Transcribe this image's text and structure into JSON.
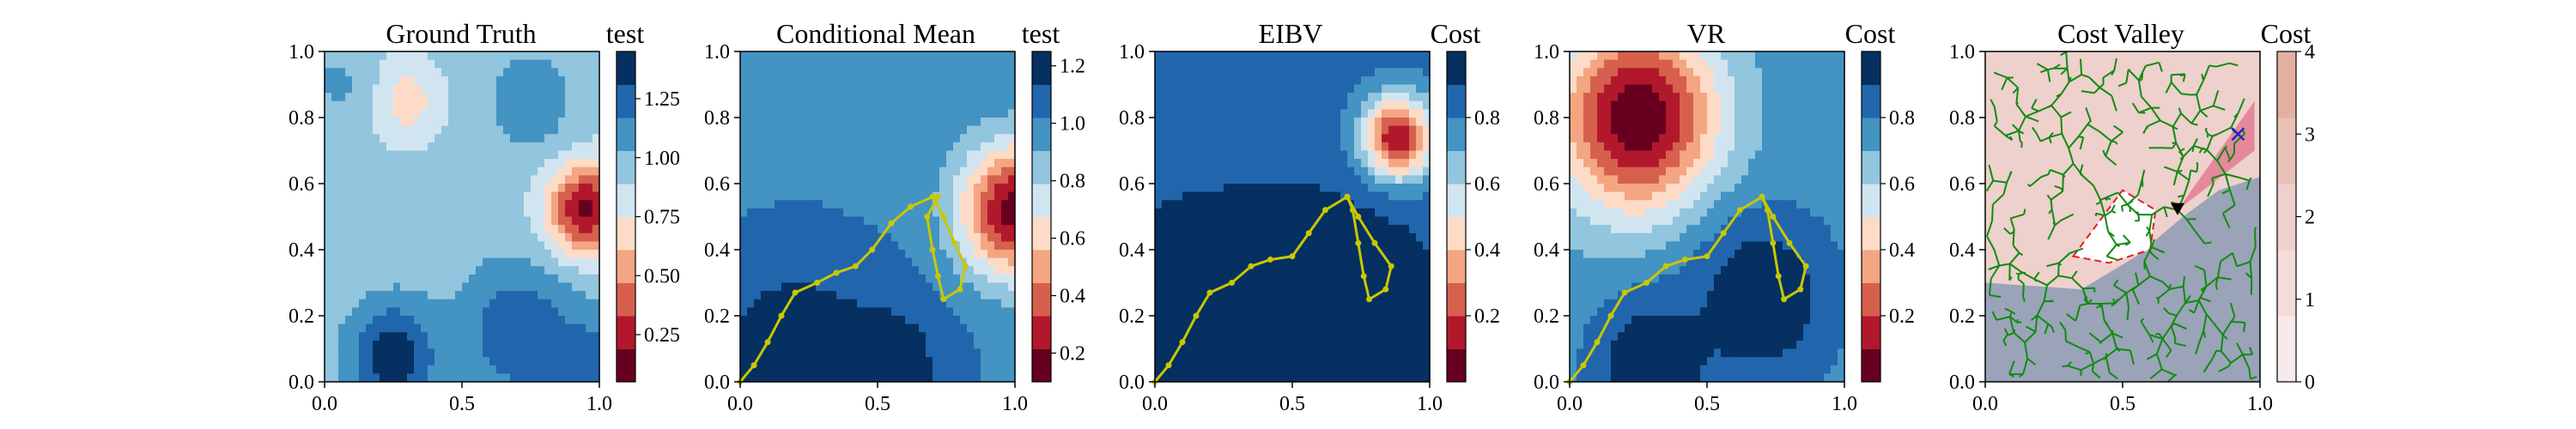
{
  "chart_data": [
    {
      "type": "heatmap",
      "title": "Ground Truth",
      "xlim": [
        0,
        1
      ],
      "ylim": [
        0,
        1
      ],
      "x_ticks": [
        "0.0",
        "0.5",
        "1.0"
      ],
      "y_ticks": [
        "0.0",
        "0.2",
        "0.4",
        "0.6",
        "0.8",
        "1.0"
      ],
      "colorbar": {
        "label": "test",
        "range": [
          0.05,
          1.45
        ],
        "ticks": [
          "0.25",
          "0.50",
          "0.75",
          "1.00",
          "1.25"
        ],
        "tick_values": [
          0.25,
          0.5,
          0.75,
          1.0,
          1.25
        ]
      },
      "colormap": "RdBu",
      "blobs": [
        {
          "x": 0.95,
          "y": 0.52,
          "value": 0.15,
          "spread": 0.1
        },
        {
          "x": 0.3,
          "y": 0.85,
          "value": 0.68,
          "spread": 0.09
        },
        {
          "x": 0.25,
          "y": 0.08,
          "value": 1.42,
          "spread": 0.11
        },
        {
          "x": 0.7,
          "y": 0.15,
          "value": 1.3,
          "spread": 0.14
        },
        {
          "x": 0.95,
          "y": 0.05,
          "value": 1.25,
          "spread": 0.12
        },
        {
          "x": 0.75,
          "y": 0.85,
          "value": 1.15,
          "spread": 0.1
        },
        {
          "x": 0.05,
          "y": 0.9,
          "value": 1.05,
          "spread": 0.08
        }
      ],
      "base_value": 0.95,
      "path": null
    },
    {
      "type": "heatmap",
      "title": "Conditional Mean",
      "xlim": [
        0,
        1
      ],
      "ylim": [
        0,
        1
      ],
      "x_ticks": [
        "0.0",
        "0.5",
        "1.0"
      ],
      "y_ticks": [
        "0.0",
        "0.2",
        "0.4",
        "0.6",
        "0.8",
        "1.0"
      ],
      "colorbar": {
        "label": "test",
        "range": [
          0.1,
          1.25
        ],
        "ticks": [
          "0.2",
          "0.4",
          "0.6",
          "0.8",
          "1.0",
          "1.2"
        ],
        "tick_values": [
          0.2,
          0.4,
          0.6,
          0.8,
          1.0,
          1.2
        ]
      },
      "colormap": "RdBu",
      "blobs": [
        {
          "x": 1.0,
          "y": 0.52,
          "value": 0.15,
          "spread": 0.14
        },
        {
          "x": 0.2,
          "y": 0.05,
          "value": 1.25,
          "spread": 0.22
        },
        {
          "x": 0.55,
          "y": 0.05,
          "value": 1.2,
          "spread": 0.15
        }
      ],
      "base_value": 1.0,
      "path": [
        [
          0.0,
          0.0
        ],
        [
          0.05,
          0.05
        ],
        [
          0.1,
          0.12
        ],
        [
          0.15,
          0.2
        ],
        [
          0.2,
          0.27
        ],
        [
          0.28,
          0.3
        ],
        [
          0.35,
          0.33
        ],
        [
          0.42,
          0.35
        ],
        [
          0.48,
          0.4
        ],
        [
          0.55,
          0.48
        ],
        [
          0.62,
          0.53
        ],
        [
          0.7,
          0.56
        ],
        [
          0.74,
          0.5
        ],
        [
          0.78,
          0.42
        ],
        [
          0.82,
          0.35
        ],
        [
          0.8,
          0.28
        ],
        [
          0.74,
          0.25
        ],
        [
          0.72,
          0.32
        ],
        [
          0.7,
          0.4
        ],
        [
          0.68,
          0.5
        ],
        [
          0.72,
          0.56
        ]
      ]
    },
    {
      "type": "heatmap",
      "title": "EIBV",
      "xlim": [
        0,
        1
      ],
      "ylim": [
        0,
        1
      ],
      "x_ticks": [
        "0.0",
        "0.5",
        "1.0"
      ],
      "y_ticks": [
        "0.0",
        "0.2",
        "0.4",
        "0.6",
        "0.8",
        "1.0"
      ],
      "colorbar": {
        "label": "Cost",
        "range": [
          0.0,
          1.0
        ],
        "ticks": [
          "0.2",
          "0.4",
          "0.6",
          "0.8"
        ],
        "tick_values": [
          0.2,
          0.4,
          0.6,
          0.8
        ]
      },
      "colormap": "RdBu",
      "blobs": [
        {
          "x": 0.88,
          "y": 0.73,
          "value": 0.0,
          "spread": 0.09
        },
        {
          "x": 0.2,
          "y": 0.1,
          "value": 1.0,
          "spread": 0.35
        },
        {
          "x": 0.7,
          "y": 0.2,
          "value": 1.0,
          "spread": 0.25
        }
      ],
      "base_value": 0.83,
      "path": [
        [
          0.0,
          0.0
        ],
        [
          0.05,
          0.05
        ],
        [
          0.1,
          0.12
        ],
        [
          0.15,
          0.2
        ],
        [
          0.2,
          0.27
        ],
        [
          0.28,
          0.3
        ],
        [
          0.35,
          0.35
        ],
        [
          0.42,
          0.37
        ],
        [
          0.5,
          0.38
        ],
        [
          0.56,
          0.45
        ],
        [
          0.62,
          0.52
        ],
        [
          0.7,
          0.56
        ],
        [
          0.74,
          0.5
        ],
        [
          0.8,
          0.42
        ],
        [
          0.86,
          0.35
        ],
        [
          0.84,
          0.28
        ],
        [
          0.78,
          0.25
        ],
        [
          0.76,
          0.32
        ],
        [
          0.74,
          0.42
        ],
        [
          0.72,
          0.52
        ],
        [
          0.7,
          0.56
        ]
      ]
    },
    {
      "type": "heatmap",
      "title": "VR",
      "xlim": [
        0,
        1
      ],
      "ylim": [
        0,
        1
      ],
      "x_ticks": [
        "0.0",
        "0.5",
        "1.0"
      ],
      "y_ticks": [
        "0.0",
        "0.2",
        "0.4",
        "0.6",
        "0.8",
        "1.0"
      ],
      "colorbar": {
        "label": "Cost",
        "range": [
          0.0,
          1.0
        ],
        "ticks": [
          "0.2",
          "0.4",
          "0.6",
          "0.8"
        ],
        "tick_values": [
          0.2,
          0.4,
          0.6,
          0.8
        ]
      },
      "colormap": "RdBu",
      "blobs": [
        {
          "x": 0.25,
          "y": 0.8,
          "value": 0.0,
          "spread": 0.2
        },
        {
          "x": 0.7,
          "y": 0.25,
          "value": 1.0,
          "spread": 0.18
        },
        {
          "x": 0.3,
          "y": 0.05,
          "value": 1.0,
          "spread": 0.15
        }
      ],
      "base_value": 0.75,
      "path": [
        [
          0.0,
          0.0
        ],
        [
          0.05,
          0.05
        ],
        [
          0.1,
          0.12
        ],
        [
          0.15,
          0.2
        ],
        [
          0.2,
          0.27
        ],
        [
          0.28,
          0.3
        ],
        [
          0.35,
          0.35
        ],
        [
          0.42,
          0.37
        ],
        [
          0.5,
          0.38
        ],
        [
          0.56,
          0.45
        ],
        [
          0.62,
          0.52
        ],
        [
          0.7,
          0.56
        ],
        [
          0.74,
          0.5
        ],
        [
          0.8,
          0.42
        ],
        [
          0.86,
          0.35
        ],
        [
          0.84,
          0.28
        ],
        [
          0.78,
          0.25
        ],
        [
          0.76,
          0.32
        ],
        [
          0.74,
          0.42
        ],
        [
          0.72,
          0.52
        ],
        [
          0.7,
          0.56
        ]
      ]
    },
    {
      "type": "heatmap",
      "title": "Cost Valley",
      "xlim": [
        0,
        1
      ],
      "ylim": [
        0,
        1
      ],
      "x_ticks": [
        "0.0",
        "0.5",
        "1.0"
      ],
      "y_ticks": [
        "0.0",
        "0.2",
        "0.4",
        "0.6",
        "0.8",
        "1.0"
      ],
      "colorbar": {
        "label": "Cost",
        "range": [
          0,
          4
        ],
        "ticks": [
          "0",
          "1",
          "2",
          "3",
          "4"
        ],
        "tick_values": [
          0,
          1,
          2,
          3,
          4
        ]
      },
      "colormap": "RdBu_light",
      "current_location": {
        "x": 0.7,
        "y": 0.52
      },
      "target": {
        "x": 0.92,
        "y": 0.75
      },
      "tree": true,
      "path": null
    }
  ]
}
